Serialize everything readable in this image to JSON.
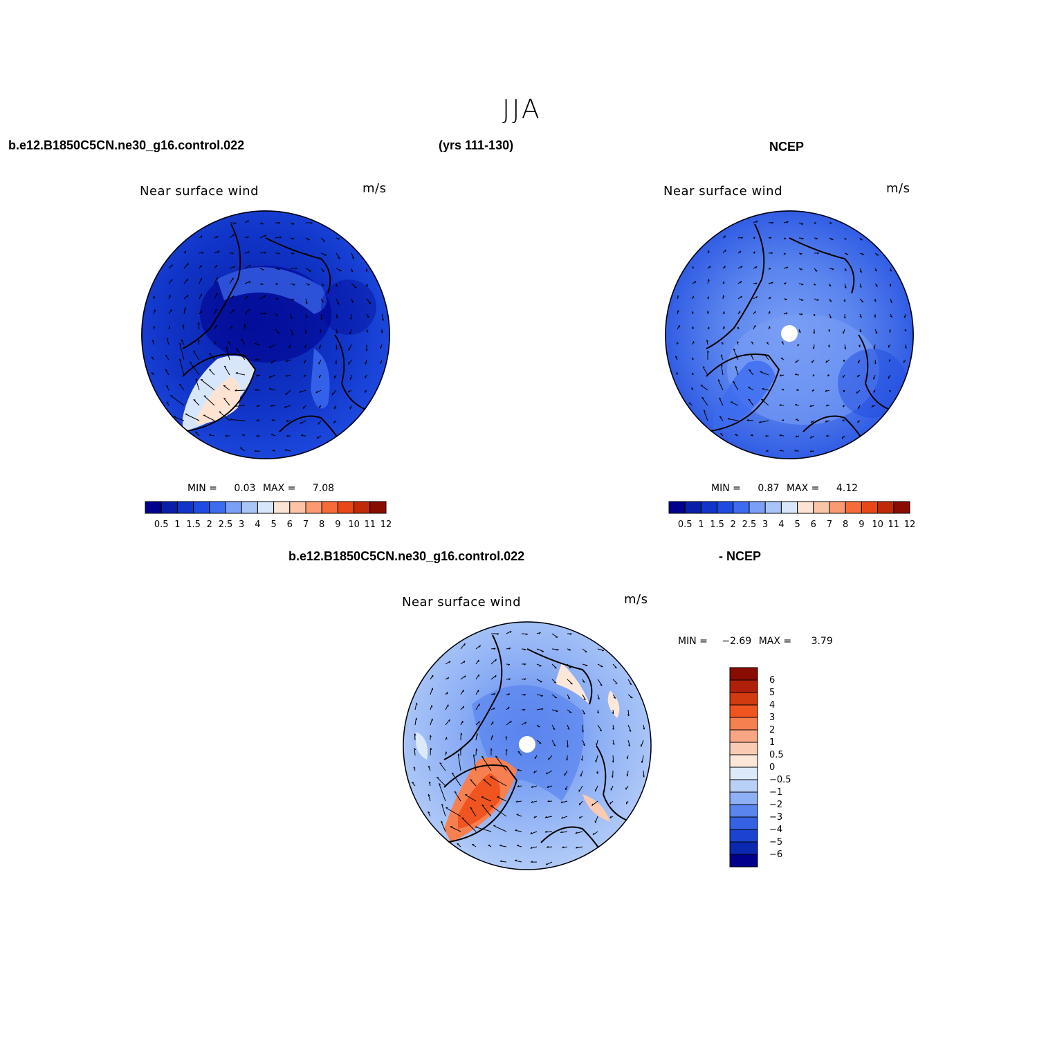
{
  "title": "JJA",
  "header": {
    "case": "b.e12.B1850C5CN.ne30_g16.control.022",
    "years": "(yrs 111-130)",
    "obs": "NCEP",
    "diff_case": "b.e12.B1850C5CN.ne30_g16.control.022",
    "diff_obs": "- NCEP"
  },
  "chart_data": [
    {
      "type": "heatmap",
      "projection": "polar-stereographic",
      "title": "Near surface wind",
      "units": "m/s",
      "min_label": "MIN =",
      "min_value": "0.03",
      "max_label": "MAX =",
      "max_value": "7.08",
      "colorbar": {
        "orientation": "horizontal",
        "levels": [
          "0.5",
          "1",
          "1.5",
          "2",
          "2.5",
          "3",
          "4",
          "5",
          "6",
          "7",
          "8",
          "9",
          "10",
          "11",
          "12"
        ],
        "colors": [
          "#00008c",
          "#0a1fa8",
          "#1035c8",
          "#1f4be0",
          "#3d6cf0",
          "#7a9ff5",
          "#a9c4f8",
          "#d7e6fb",
          "#fde4d2",
          "#fbc4a6",
          "#f99a73",
          "#f56c3a",
          "#e84818",
          "#c02a08",
          "#8a0c00"
        ]
      }
    },
    {
      "type": "heatmap",
      "projection": "polar-stereographic",
      "title": "Near surface wind",
      "units": "m/s",
      "min_label": "MIN =",
      "min_value": "0.87",
      "max_label": "MAX =",
      "max_value": "4.12",
      "colorbar": {
        "orientation": "horizontal",
        "levels": [
          "0.5",
          "1",
          "1.5",
          "2",
          "2.5",
          "3",
          "4",
          "5",
          "6",
          "7",
          "8",
          "9",
          "10",
          "11",
          "12"
        ],
        "colors": [
          "#00008c",
          "#0a1fa8",
          "#1035c8",
          "#1f4be0",
          "#3d6cf0",
          "#7a9ff5",
          "#a9c4f8",
          "#d7e6fb",
          "#fde4d2",
          "#fbc4a6",
          "#f99a73",
          "#f56c3a",
          "#e84818",
          "#c02a08",
          "#8a0c00"
        ]
      }
    },
    {
      "type": "heatmap",
      "projection": "polar-stereographic",
      "title": "Near surface wind",
      "units": "m/s",
      "min_label": "MIN =",
      "min_value": "−2.69",
      "max_label": "MAX =",
      "max_value": "3.79",
      "colorbar": {
        "orientation": "vertical",
        "levels": [
          "6",
          "5",
          "4",
          "3",
          "2",
          "1",
          "0.5",
          "0",
          "−0.5",
          "−1",
          "−2",
          "−3",
          "−4",
          "−5",
          "−6"
        ],
        "colors": [
          "#8a0c00",
          "#b02008",
          "#d23a10",
          "#f05520",
          "#f78050",
          "#f9a684",
          "#fbcab2",
          "#fde7d8",
          "#dce9fb",
          "#b8d0f8",
          "#8eb0f5",
          "#5a85ee",
          "#3562e4",
          "#1a44d0",
          "#0a28b0",
          "#00008c"
        ]
      }
    }
  ]
}
